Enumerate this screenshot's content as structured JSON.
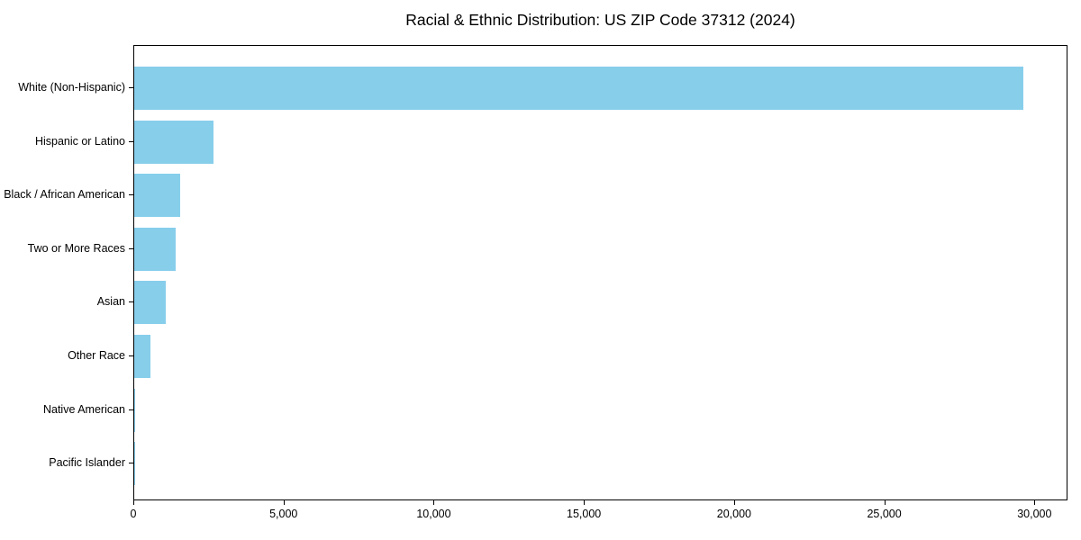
{
  "chart_data": {
    "type": "bar",
    "orientation": "horizontal",
    "title": "Racial & Ethnic Distribution: US ZIP Code 37312 (2024)",
    "categories": [
      "White (Non-Hispanic)",
      "Hispanic or Latino",
      "Black / African American",
      "Two or More Races",
      "Asian",
      "Other Race",
      "Native American",
      "Pacific Islander"
    ],
    "values": [
      29650,
      2650,
      1530,
      1390,
      1060,
      530,
      40,
      15
    ],
    "xlabel": "",
    "ylabel": "",
    "xlim": [
      0,
      31100
    ],
    "x_ticks": [
      {
        "value": 0,
        "label": "0"
      },
      {
        "value": 5000,
        "label": "5,000"
      },
      {
        "value": 10000,
        "label": "10,000"
      },
      {
        "value": 15000,
        "label": "15,000"
      },
      {
        "value": 20000,
        "label": "20,000"
      },
      {
        "value": 25000,
        "label": "25,000"
      },
      {
        "value": 30000,
        "label": "30,000"
      }
    ],
    "bar_color": "#87CEEB",
    "frame_color": "#000000",
    "grid": false,
    "legend": "none"
  }
}
